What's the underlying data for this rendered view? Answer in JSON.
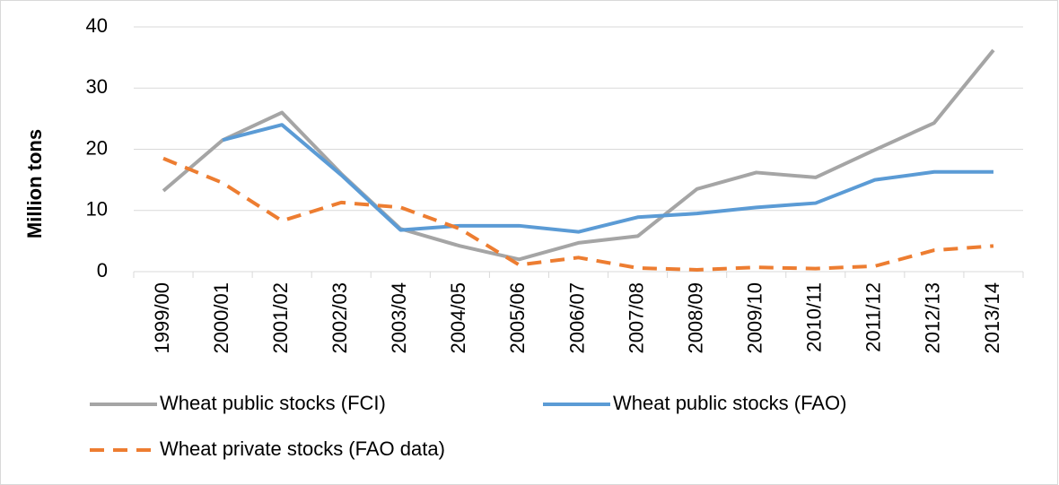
{
  "chart_data": {
    "type": "line",
    "y_label": "Million tons",
    "categories": [
      "1999/00",
      "2000/01",
      "2001/02",
      "2002/03",
      "2003/04",
      "2004/05",
      "2005/06",
      "2006/07",
      "2007/08",
      "2008/09",
      "2009/10",
      "2010/11",
      "2011/12",
      "2012/13",
      "2013/14"
    ],
    "series": [
      {
        "name": "Wheat public stocks (FCI)",
        "color": "#a5a5a5",
        "dashed": false,
        "values": [
          13.2,
          21.5,
          26,
          16,
          7,
          4.2,
          2,
          4.7,
          5.8,
          13.5,
          16.2,
          15.4,
          19.9,
          24.3,
          36.2
        ]
      },
      {
        "name": "Wheat public stocks (FAO)",
        "color": "#5b9bd5",
        "dashed": false,
        "values": [
          null,
          21.5,
          24,
          15.8,
          6.8,
          7.5,
          7.5,
          6.5,
          8.9,
          9.5,
          10.5,
          11.2,
          15,
          16.3,
          16.3
        ]
      },
      {
        "name": "Wheat private stocks (FAO data)",
        "color": "#ed7d31",
        "dashed": true,
        "values": [
          18.5,
          14.5,
          8.3,
          11.3,
          10.5,
          7,
          1.1,
          2.3,
          0.6,
          0.3,
          0.7,
          0.5,
          0.9,
          3.5,
          4.2
        ]
      }
    ],
    "ylim": [
      0,
      40
    ],
    "yticks": [
      0,
      10,
      20,
      30,
      40
    ],
    "grid": true
  }
}
